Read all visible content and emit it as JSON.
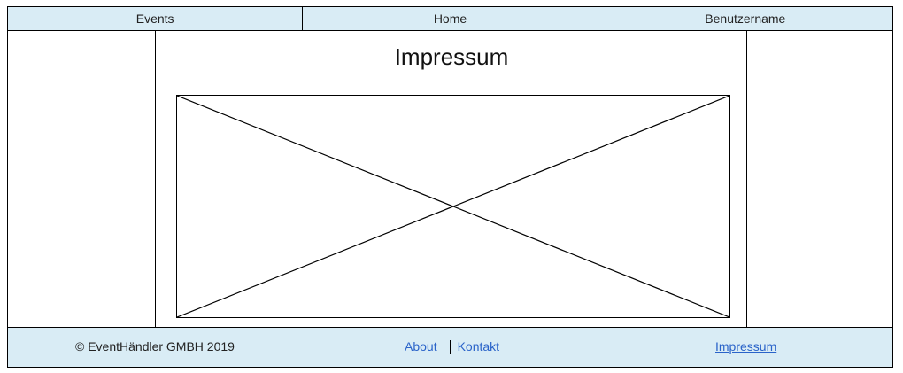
{
  "nav": {
    "items": [
      {
        "label": "Events"
      },
      {
        "label": "Home"
      },
      {
        "label": "Benutzername"
      }
    ]
  },
  "main": {
    "title": "Impressum",
    "image_placeholder": "image-placeholder-icon"
  },
  "footer": {
    "copyright": "© EventHändler GMBH 2019",
    "links": [
      {
        "label": "About"
      },
      {
        "label": "Kontakt"
      }
    ],
    "impressum": "Impressum"
  },
  "colors": {
    "nav_bg": "#d9ecf5",
    "footer_bg": "#d9ecf5",
    "link": "#2a63c9",
    "border": "#000000"
  }
}
